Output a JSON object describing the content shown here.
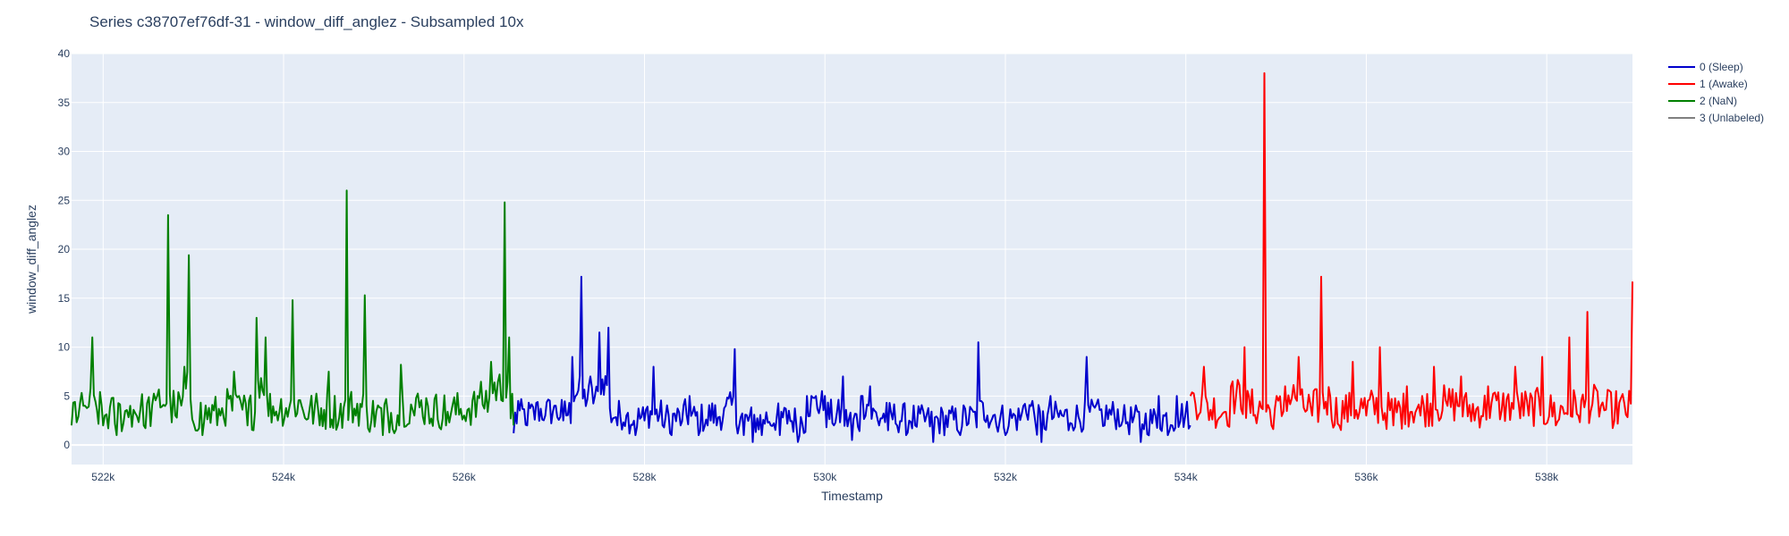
{
  "chart_data": {
    "type": "line",
    "title": "Series c38707ef76df-31 - window_diff_anglez - Subsampled 10x",
    "xlabel": "Timestamp",
    "ylabel": "window_diff_anglez",
    "xlim": [
      521650,
      538950
    ],
    "ylim": [
      -2,
      40
    ],
    "x_ticks": [
      522000,
      524000,
      526000,
      528000,
      530000,
      532000,
      534000,
      536000,
      538000
    ],
    "x_tick_labels": [
      "522k",
      "524k",
      "526k",
      "528k",
      "530k",
      "532k",
      "534k",
      "536k",
      "538k"
    ],
    "y_ticks": [
      0,
      5,
      10,
      15,
      20,
      25,
      30,
      35,
      40
    ],
    "y_tick_labels": [
      "0",
      "5",
      "10",
      "15",
      "20",
      "25",
      "30",
      "35",
      "40"
    ],
    "grid": true,
    "plot_background": "#e5ecf6",
    "legend_position": "right",
    "series": [
      {
        "name": "0 (Sleep)",
        "color": "#0000cc",
        "x_range": [
          526550,
          534050
        ],
        "approx_values": [
          [
            526550,
            1.2
          ],
          [
            526600,
            4.5
          ],
          [
            526700,
            2.0
          ],
          [
            526800,
            4.3
          ],
          [
            526900,
            3.0
          ],
          [
            527000,
            4.0
          ],
          [
            527100,
            2.5
          ],
          [
            527200,
            9.0
          ],
          [
            527300,
            17.2
          ],
          [
            527400,
            7.0
          ],
          [
            527500,
            11.5
          ],
          [
            527600,
            12.0
          ],
          [
            527700,
            2.0
          ],
          [
            527800,
            3.0
          ],
          [
            527900,
            1.0
          ],
          [
            528000,
            2.5
          ],
          [
            528100,
            8.0
          ],
          [
            528200,
            2.0
          ],
          [
            528300,
            1.0
          ],
          [
            528400,
            2.0
          ],
          [
            528500,
            5.0
          ],
          [
            528600,
            1.0
          ],
          [
            528700,
            2.0
          ],
          [
            528800,
            2.0
          ],
          [
            528900,
            4.0
          ],
          [
            529000,
            9.8
          ],
          [
            529100,
            1.0
          ],
          [
            529200,
            0.3
          ],
          [
            529300,
            1.0
          ],
          [
            529400,
            2.0
          ],
          [
            529500,
            1.0
          ],
          [
            529600,
            3.5
          ],
          [
            529700,
            0.3
          ],
          [
            529800,
            5.0
          ],
          [
            529900,
            5.0
          ],
          [
            530000,
            5.0
          ],
          [
            530100,
            2.0
          ],
          [
            530200,
            7.0
          ],
          [
            530300,
            0.5
          ],
          [
            530400,
            5.0
          ],
          [
            530500,
            6.0
          ],
          [
            530600,
            2.0
          ],
          [
            530700,
            1.5
          ],
          [
            530800,
            2.0
          ],
          [
            530900,
            1.0
          ],
          [
            531000,
            2.0
          ],
          [
            531200,
            0.3
          ],
          [
            531500,
            1.0
          ],
          [
            531700,
            10.5
          ],
          [
            531800,
            3.0
          ],
          [
            531900,
            2.0
          ],
          [
            532000,
            1.0
          ],
          [
            532200,
            4.0
          ],
          [
            532300,
            4.5
          ],
          [
            532400,
            0.3
          ],
          [
            532500,
            5.0
          ],
          [
            532700,
            1.5
          ],
          [
            532900,
            9.0
          ],
          [
            533100,
            2.0
          ],
          [
            533300,
            2.5
          ],
          [
            533500,
            0.3
          ],
          [
            533700,
            5.0
          ],
          [
            533800,
            1.0
          ],
          [
            533900,
            5.0
          ],
          [
            534050,
            2.0
          ]
        ]
      },
      {
        "name": "1 (Awake)",
        "color": "#ff0000",
        "x_range": [
          534050,
          538950
        ],
        "approx_values": [
          [
            534050,
            5.0
          ],
          [
            534200,
            8.0
          ],
          [
            534350,
            2.5
          ],
          [
            534500,
            6.0
          ],
          [
            534650,
            10.0
          ],
          [
            534750,
            3.0
          ],
          [
            534870,
            38.0
          ],
          [
            534950,
            2.0
          ],
          [
            535100,
            6.0
          ],
          [
            535250,
            9.0
          ],
          [
            535400,
            3.0
          ],
          [
            535500,
            17.2
          ],
          [
            535600,
            5.0
          ],
          [
            535700,
            2.0
          ],
          [
            535850,
            8.5
          ],
          [
            536000,
            3.0
          ],
          [
            536150,
            10.0
          ],
          [
            536300,
            2.0
          ],
          [
            536450,
            6.0
          ],
          [
            536600,
            3.0
          ],
          [
            536750,
            8.0
          ],
          [
            536900,
            4.0
          ],
          [
            537050,
            7.0
          ],
          [
            537200,
            2.5
          ],
          [
            537350,
            6.0
          ],
          [
            537500,
            3.5
          ],
          [
            537650,
            8.0
          ],
          [
            537800,
            3.0
          ],
          [
            537950,
            9.0
          ],
          [
            538100,
            2.0
          ],
          [
            538250,
            11.0
          ],
          [
            538350,
            3.0
          ],
          [
            538450,
            13.6
          ],
          [
            538600,
            4.0
          ],
          [
            538750,
            2.5
          ],
          [
            538950,
            16.7
          ]
        ]
      },
      {
        "name": "2 (NaN)",
        "color": "#008000",
        "x_range": [
          521650,
          526550
        ],
        "approx_values": [
          [
            521650,
            2.0
          ],
          [
            521800,
            4.0
          ],
          [
            521880,
            11.0
          ],
          [
            522000,
            2.0
          ],
          [
            522150,
            1.0
          ],
          [
            522300,
            4.0
          ],
          [
            522450,
            2.0
          ],
          [
            522600,
            5.0
          ],
          [
            522720,
            23.5
          ],
          [
            522800,
            3.0
          ],
          [
            522900,
            8.0
          ],
          [
            522950,
            19.4
          ],
          [
            523100,
            1.0
          ],
          [
            523300,
            3.0
          ],
          [
            523450,
            7.5
          ],
          [
            523600,
            2.0
          ],
          [
            523700,
            13.0
          ],
          [
            523800,
            11.0
          ],
          [
            523900,
            3.0
          ],
          [
            524100,
            14.8
          ],
          [
            524200,
            4.0
          ],
          [
            524400,
            2.0
          ],
          [
            524500,
            7.5
          ],
          [
            524600,
            2.0
          ],
          [
            524700,
            26.0
          ],
          [
            524800,
            3.0
          ],
          [
            524900,
            15.3
          ],
          [
            525100,
            1.0
          ],
          [
            525300,
            8.2
          ],
          [
            525450,
            3.0
          ],
          [
            525600,
            4.0
          ],
          [
            525800,
            2.0
          ],
          [
            526000,
            3.0
          ],
          [
            526150,
            5.0
          ],
          [
            526300,
            8.5
          ],
          [
            526450,
            24.8
          ],
          [
            526500,
            11.0
          ],
          [
            526550,
            2.0
          ]
        ]
      },
      {
        "name": "3 (Unlabeled)",
        "color": "#808080",
        "x_range": null,
        "approx_values": []
      }
    ]
  }
}
